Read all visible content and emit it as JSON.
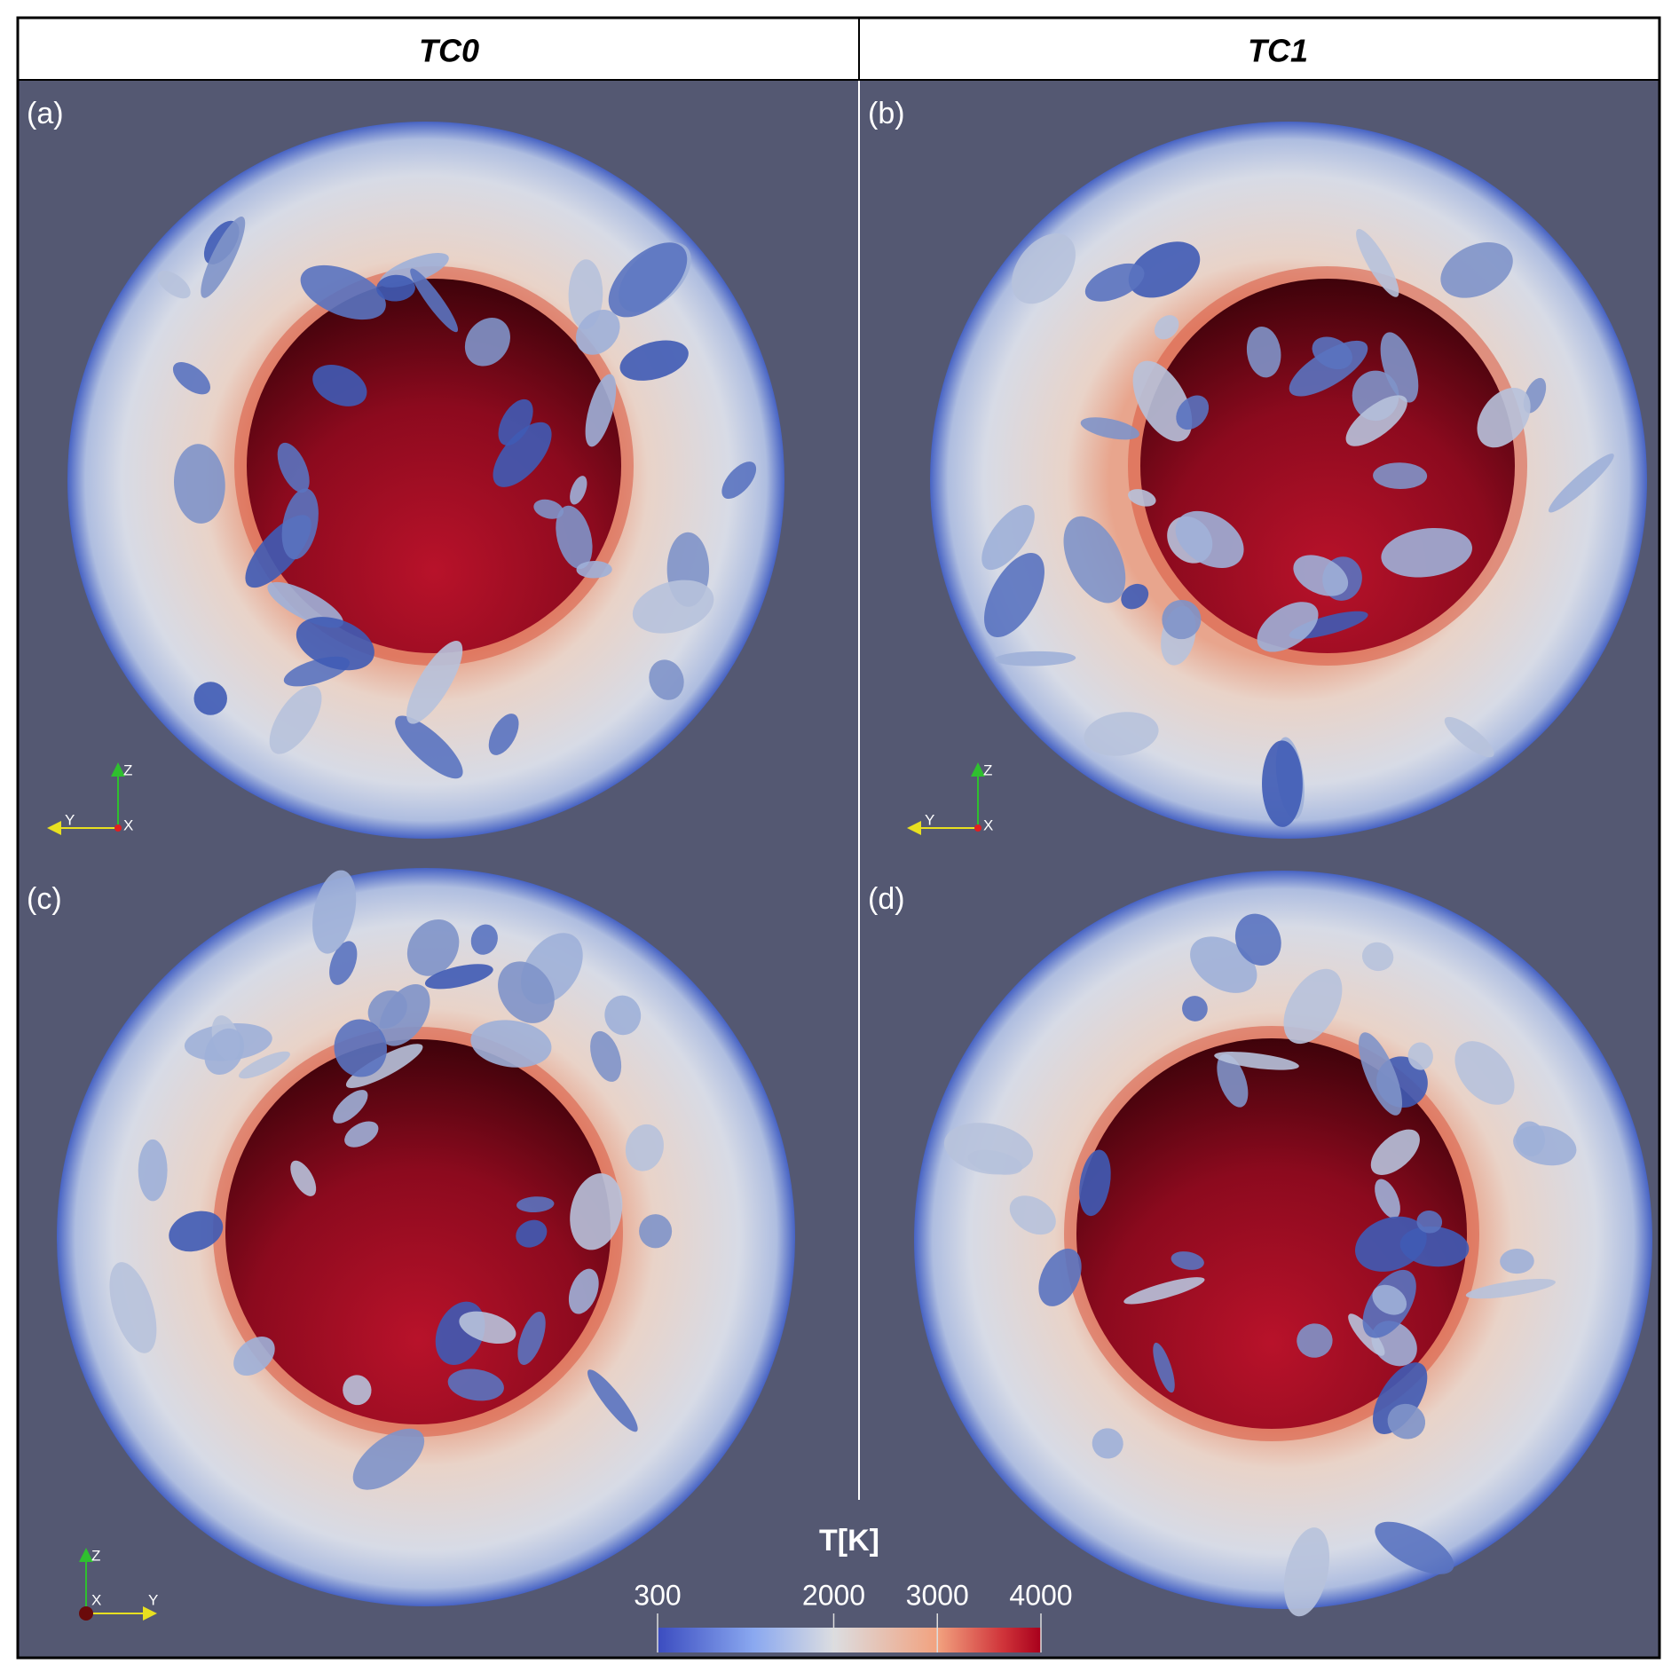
{
  "header": {
    "columns": [
      "TC0",
      "TC1"
    ]
  },
  "panels": [
    {
      "label": "(a)",
      "axes": [
        "Z",
        "Y",
        "X"
      ]
    },
    {
      "label": "(b)",
      "axes": [
        "Z",
        "Y",
        "X"
      ]
    },
    {
      "label": "(c)",
      "axes": [
        "Z",
        "X",
        "Y"
      ]
    },
    {
      "label": "(d)",
      "axes": []
    }
  ],
  "colorbar": {
    "title": "T[K]",
    "lim": [
      300,
      4000
    ],
    "ticks": [
      300,
      2000,
      3000,
      4000
    ]
  }
}
